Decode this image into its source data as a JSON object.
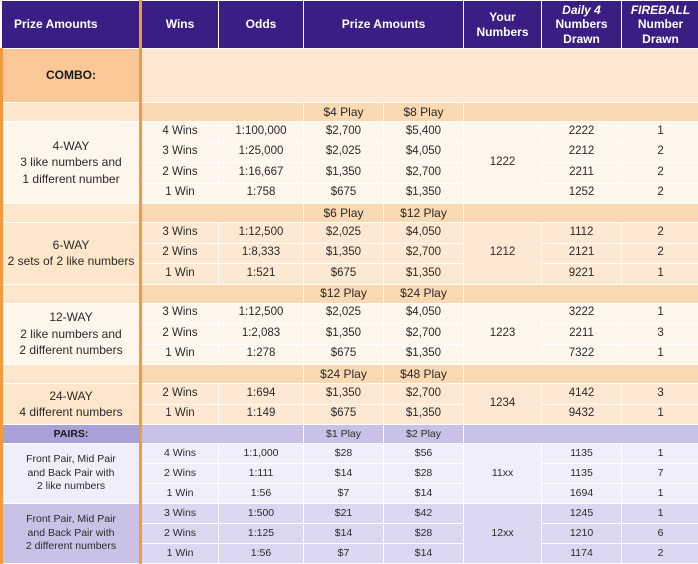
{
  "headers": {
    "prize_amounts_left": "Prize Amounts",
    "wins": "Wins",
    "odds": "Odds",
    "prize_amounts": "Prize Amounts",
    "your_numbers": "Your Numbers",
    "daily4_italic": "Daily 4",
    "daily4_rest": "Numbers Drawn",
    "fireball_italic": "FIREBALL",
    "fireball_rest": "Number Drawn"
  },
  "combo": {
    "label": "COMBO:",
    "groups": [
      {
        "name_lines": [
          "4-WAY",
          "3 like numbers and",
          "1 different number"
        ],
        "plays": [
          "$4 Play",
          "$8 Play"
        ],
        "your_numbers": "1222",
        "rows": [
          {
            "wins": "4 Wins",
            "odds": "1:100,000",
            "p1": "$2,700",
            "p2": "$5,400",
            "drawn": "2222",
            "fireball": "1"
          },
          {
            "wins": "3 Wins",
            "odds": "1:25,000",
            "p1": "$2,025",
            "p2": "$4,050",
            "drawn": "2212",
            "fireball": "2"
          },
          {
            "wins": "2 Wins",
            "odds": "1:16,667",
            "p1": "$1,350",
            "p2": "$2,700",
            "drawn": "2211",
            "fireball": "2"
          },
          {
            "wins": "1 Win",
            "odds": "1:758",
            "p1": "$675",
            "p2": "$1,350",
            "drawn": "1252",
            "fireball": "2"
          }
        ]
      },
      {
        "name_lines": [
          "6-WAY",
          "2 sets of 2 like numbers"
        ],
        "plays": [
          "$6 Play",
          "$12 Play"
        ],
        "your_numbers": "1212",
        "rows": [
          {
            "wins": "3 Wins",
            "odds": "1:12,500",
            "p1": "$2,025",
            "p2": "$4,050",
            "drawn": "1112",
            "fireball": "2"
          },
          {
            "wins": "2 Wins",
            "odds": "1:8,333",
            "p1": "$1,350",
            "p2": "$2,700",
            "drawn": "2121",
            "fireball": "2"
          },
          {
            "wins": "1 Win",
            "odds": "1:521",
            "p1": "$675",
            "p2": "$1,350",
            "drawn": "9221",
            "fireball": "1"
          }
        ]
      },
      {
        "name_lines": [
          "12-WAY",
          "2 like numbers and",
          "2 different numbers"
        ],
        "plays": [
          "$12 Play",
          "$24 Play"
        ],
        "your_numbers": "1223",
        "rows": [
          {
            "wins": "3 Wins",
            "odds": "1:12,500",
            "p1": "$2,025",
            "p2": "$4,050",
            "drawn": "3222",
            "fireball": "1"
          },
          {
            "wins": "2 Wins",
            "odds": "1:2,083",
            "p1": "$1,350",
            "p2": "$2,700",
            "drawn": "2211",
            "fireball": "3"
          },
          {
            "wins": "1 Win",
            "odds": "1:278",
            "p1": "$675",
            "p2": "$1,350",
            "drawn": "7322",
            "fireball": "1"
          }
        ]
      },
      {
        "name_lines": [
          "24-WAY",
          "4 different numbers"
        ],
        "plays": [
          "$24 Play",
          "$48 Play"
        ],
        "your_numbers": "1234",
        "rows": [
          {
            "wins": "2 Wins",
            "odds": "1:694",
            "p1": "$1,350",
            "p2": "$2,700",
            "drawn": "4142",
            "fireball": "3"
          },
          {
            "wins": "1 Win",
            "odds": "1:149",
            "p1": "$675",
            "p2": "$1,350",
            "drawn": "9432",
            "fireball": "1"
          }
        ]
      }
    ]
  },
  "pairs": {
    "label": "PAIRS:",
    "plays": [
      "$1 Play",
      "$2 Play"
    ],
    "groups": [
      {
        "name_lines": [
          "Front Pair, Mid Pair",
          "and Back Pair with",
          "2 like numbers"
        ],
        "your_numbers": "11xx",
        "rows": [
          {
            "wins": "4 Wins",
            "odds": "1:1,000",
            "p1": "$28",
            "p2": "$56",
            "drawn": "1135",
            "fireball": "1"
          },
          {
            "wins": "2 Wins",
            "odds": "1:111",
            "p1": "$14",
            "p2": "$28",
            "drawn": "1135",
            "fireball": "7"
          },
          {
            "wins": "1 Win",
            "odds": "1:56",
            "p1": "$7",
            "p2": "$14",
            "drawn": "1694",
            "fireball": "1"
          }
        ]
      },
      {
        "name_lines": [
          "Front Pair, Mid Pair",
          "and Back Pair with",
          "2 different numbers"
        ],
        "your_numbers": "12xx",
        "rows": [
          {
            "wins": "3 Wins",
            "odds": "1:500",
            "p1": "$21",
            "p2": "$42",
            "drawn": "1245",
            "fireball": "1"
          },
          {
            "wins": "2 Wins",
            "odds": "1:125",
            "p1": "$14",
            "p2": "$28",
            "drawn": "1210",
            "fireball": "6"
          },
          {
            "wins": "1 Win",
            "odds": "1:56",
            "p1": "$7",
            "p2": "$14",
            "drawn": "1174",
            "fireball": "2"
          }
        ]
      }
    ]
  },
  "colors": {
    "header_purple": "#3a1e83",
    "orange_accent": "#f29a3d",
    "orange_light": "#fde6c9",
    "purple_light": "#c9c2e6"
  }
}
